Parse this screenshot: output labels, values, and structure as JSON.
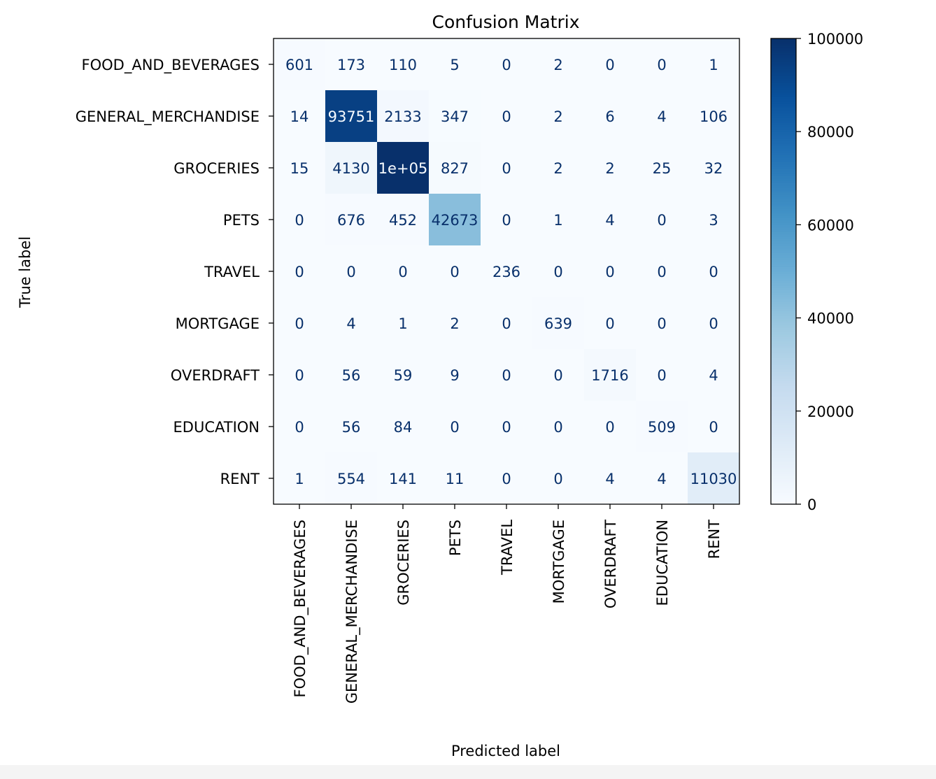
{
  "chart_data": {
    "type": "heatmap",
    "title": "Confusion Matrix",
    "xlabel": "Predicted label",
    "ylabel": "True label",
    "colormap": "Blues",
    "cell_text_color_light": "#f7fbff",
    "cell_text_color_dark": "#08306b",
    "x_labels": [
      "FOOD_AND_BEVERAGES",
      "GENERAL_MERCHANDISE",
      "GROCERIES",
      "PETS",
      "TRAVEL",
      "MORTGAGE",
      "OVERDRAFT",
      "EDUCATION",
      "RENT"
    ],
    "y_labels": [
      "FOOD_AND_BEVERAGES",
      "GENERAL_MERCHANDISE",
      "GROCERIES",
      "PETS",
      "TRAVEL",
      "MORTGAGE",
      "OVERDRAFT",
      "EDUCATION",
      "RENT"
    ],
    "values": [
      [
        601,
        173,
        110,
        5,
        0,
        2,
        0,
        0,
        1
      ],
      [
        14,
        93751,
        2133,
        347,
        0,
        2,
        6,
        4,
        106
      ],
      [
        15,
        4130,
        100000,
        827,
        0,
        2,
        2,
        25,
        32
      ],
      [
        0,
        676,
        452,
        42673,
        0,
        1,
        4,
        0,
        3
      ],
      [
        0,
        0,
        0,
        0,
        236,
        0,
        0,
        0,
        0
      ],
      [
        0,
        4,
        1,
        2,
        0,
        639,
        0,
        0,
        0
      ],
      [
        0,
        56,
        59,
        9,
        0,
        0,
        1716,
        0,
        4
      ],
      [
        0,
        56,
        84,
        0,
        0,
        0,
        0,
        509,
        0
      ],
      [
        1,
        554,
        141,
        11,
        0,
        0,
        4,
        4,
        11030
      ]
    ],
    "cell_labels": [
      [
        "601",
        "173",
        "110",
        "5",
        "0",
        "2",
        "0",
        "0",
        "1"
      ],
      [
        "14",
        "93751",
        "2133",
        "347",
        "0",
        "2",
        "6",
        "4",
        "106"
      ],
      [
        "15",
        "4130",
        "1e+05",
        "827",
        "0",
        "2",
        "2",
        "25",
        "32"
      ],
      [
        "0",
        "676",
        "452",
        "42673",
        "0",
        "1",
        "4",
        "0",
        "3"
      ],
      [
        "0",
        "0",
        "0",
        "0",
        "236",
        "0",
        "0",
        "0",
        "0"
      ],
      [
        "0",
        "4",
        "1",
        "2",
        "0",
        "639",
        "0",
        "0",
        "0"
      ],
      [
        "0",
        "56",
        "59",
        "9",
        "0",
        "0",
        "1716",
        "0",
        "4"
      ],
      [
        "0",
        "56",
        "84",
        "0",
        "0",
        "0",
        "0",
        "509",
        "0"
      ],
      [
        "1",
        "554",
        "141",
        "11",
        "0",
        "0",
        "4",
        "4",
        "11030"
      ]
    ],
    "colorbar": {
      "range": [
        0,
        100000
      ],
      "ticks": [
        0,
        20000,
        40000,
        60000,
        80000,
        100000
      ],
      "tick_labels": [
        "0",
        "20000",
        "40000",
        "60000",
        "80000",
        "100000"
      ]
    },
    "grid": false,
    "legend": "colorbar-right"
  }
}
